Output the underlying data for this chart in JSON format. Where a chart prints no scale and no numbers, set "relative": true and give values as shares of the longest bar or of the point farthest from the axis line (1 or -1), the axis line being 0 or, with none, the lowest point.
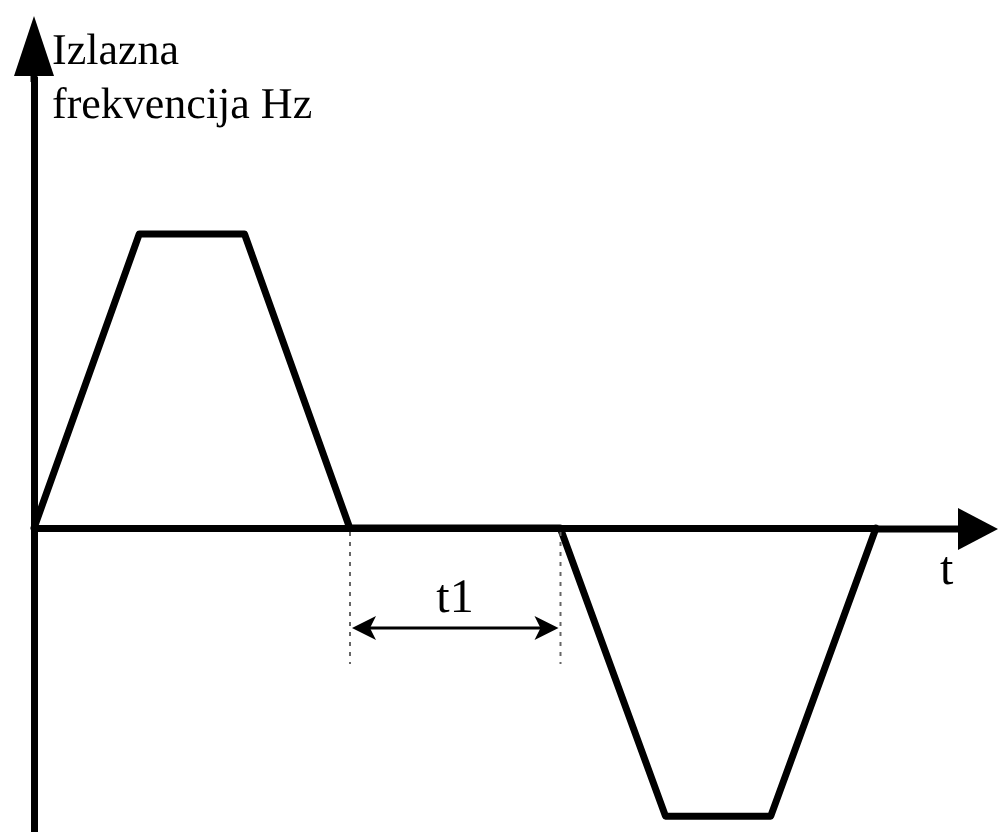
{
  "chart_data": {
    "type": "line",
    "xlabel": "t",
    "ylabel": "Izlazna frekvencija Hz",
    "annotations": [
      "t1"
    ],
    "categories": [
      null,
      null,
      null,
      null,
      null,
      null,
      null,
      null,
      null
    ],
    "values": [
      0,
      1,
      1,
      0,
      0,
      0,
      -0.98,
      -0.98,
      0
    ],
    "color": "#000000",
    "relative": true,
    "marker": "none",
    "line_style": "solid"
  }
}
